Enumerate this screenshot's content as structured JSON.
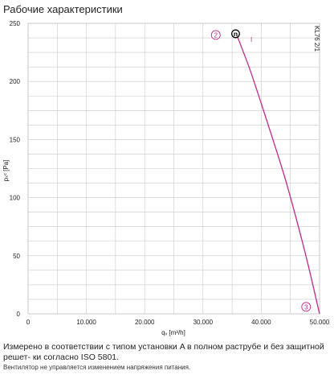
{
  "page": {
    "title": "Рабочие характеристики"
  },
  "chart_data": {
    "type": "line",
    "title": "Рабочие характеристики",
    "xlabel": "qᵥ [m³/h]",
    "ylabel": "pₛᶜ [Pa]",
    "xlim": [
      0,
      50000
    ],
    "ylim": [
      0,
      250
    ],
    "x_ticks": [
      0,
      10000,
      20000,
      30000,
      40000,
      50000
    ],
    "x_tick_labels": [
      "0",
      "10.000",
      "20.000",
      "30.000",
      "40.000",
      "50.000"
    ],
    "y_ticks": [
      0,
      50,
      100,
      150,
      200,
      250
    ],
    "y_tick_labels": [
      "0",
      "50",
      "100",
      "150",
      "200",
      "250"
    ],
    "grid": true,
    "model_label": "KL76 2/1",
    "series": [
      {
        "color": "#c0288a",
        "x": [
          35800,
          38000,
          40000,
          42000,
          44000,
          46000,
          48000,
          50000
        ],
        "y": [
          240,
          211,
          181,
          150,
          118,
          82,
          43,
          0
        ]
      }
    ],
    "markers": [
      {
        "label": "2",
        "x": 32200,
        "y": 240,
        "shape": "circle",
        "color": "#c0288a"
      },
      {
        "label": "n",
        "x": 35600,
        "y": 241,
        "shape": "circle",
        "color": "#000000"
      },
      {
        "label": "I",
        "x": 38300,
        "y": 236,
        "shape": "text",
        "color": "#c0288a"
      },
      {
        "label": "3",
        "x": 47700,
        "y": 6,
        "shape": "circle",
        "color": "#c0288a"
      }
    ]
  },
  "footer": {
    "description": "Измерено в соответствии с типом установки A в полном раструбе и без защитной решет- ки согласно ISO 5801.",
    "note": "Вентилятор не управляется изменением напряжения питания."
  }
}
